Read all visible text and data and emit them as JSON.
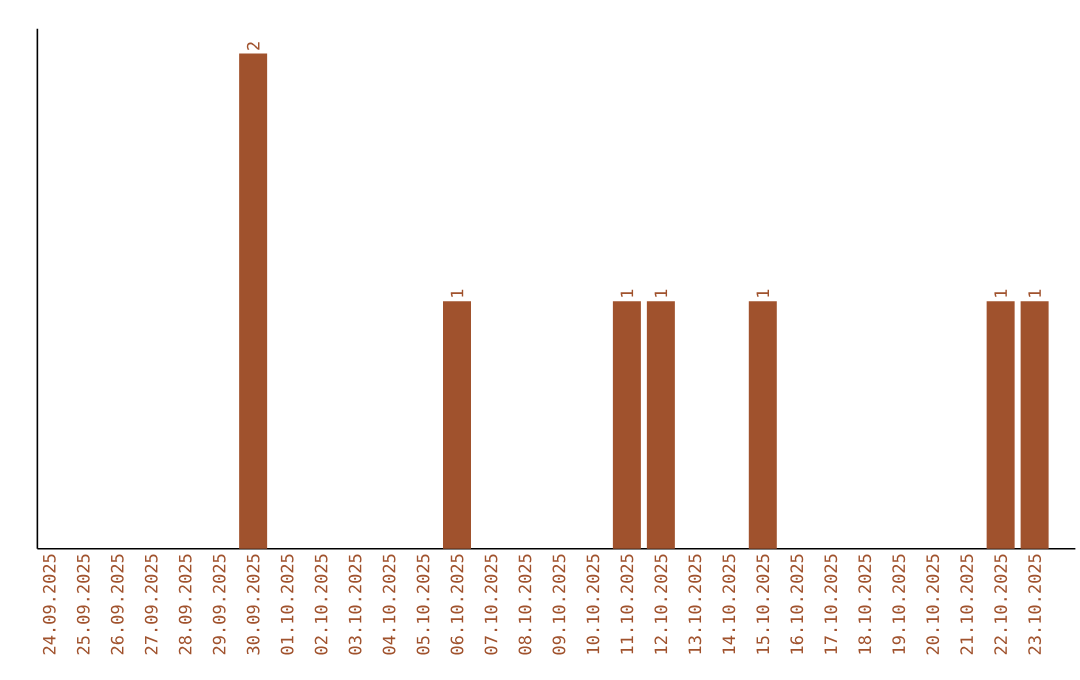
{
  "chart_data": {
    "type": "bar",
    "categories": [
      "24.09.2025",
      "25.09.2025",
      "26.09.2025",
      "27.09.2025",
      "28.09.2025",
      "29.09.2025",
      "30.09.2025",
      "01.10.2025",
      "02.10.2025",
      "03.10.2025",
      "04.10.2025",
      "05.10.2025",
      "06.10.2025",
      "07.10.2025",
      "08.10.2025",
      "09.10.2025",
      "10.10.2025",
      "11.10.2025",
      "12.10.2025",
      "13.10.2025",
      "14.10.2025",
      "15.10.2025",
      "16.10.2025",
      "17.10.2025",
      "18.10.2025",
      "19.10.2025",
      "20.10.2025",
      "21.10.2025",
      "22.10.2025",
      "23.10.2025"
    ],
    "values": [
      0,
      0,
      0,
      0,
      0,
      0,
      2,
      0,
      0,
      0,
      0,
      0,
      1,
      0,
      0,
      0,
      0,
      1,
      1,
      0,
      0,
      1,
      0,
      0,
      0,
      0,
      0,
      0,
      1,
      1
    ],
    "value_labels": [
      null,
      null,
      null,
      null,
      null,
      null,
      "2",
      null,
      null,
      null,
      null,
      null,
      "1",
      null,
      null,
      null,
      null,
      "1",
      "1",
      null,
      null,
      "1",
      null,
      null,
      null,
      null,
      null,
      null,
      "1",
      "1"
    ],
    "color": "#a0522d",
    "ylim": [
      0,
      2.1
    ],
    "tick_labels": "x",
    "grid": false
  }
}
